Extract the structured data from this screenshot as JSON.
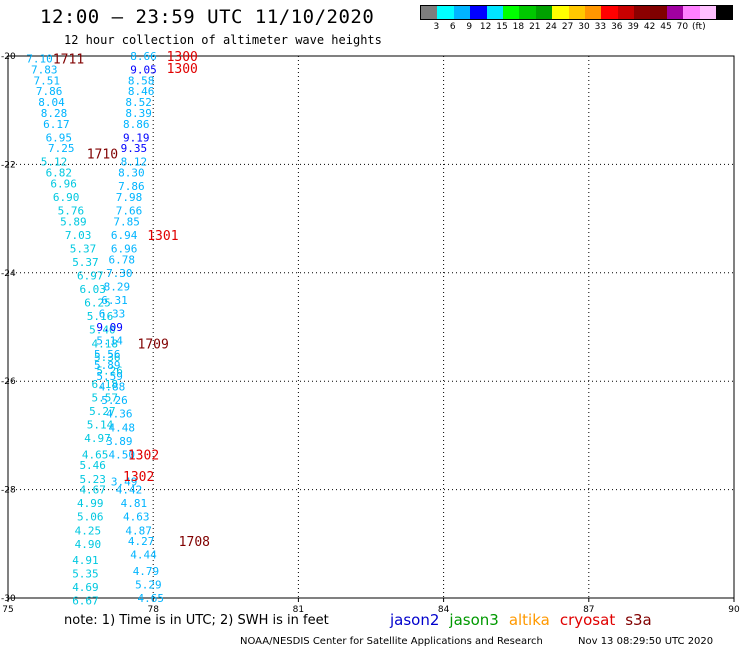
{
  "header": {
    "title": "12:00 – 23:59 UTC 11/10/2020",
    "subtitle": "12 hour collection of altimeter wave heights"
  },
  "legend": {
    "colors": [
      "#7d7d7d",
      "#00ffff",
      "#00b4ff",
      "#0000ff",
      "#00e4ff",
      "#00ff00",
      "#00c800",
      "#00a000",
      "#ffff00",
      "#ffc800",
      "#ff9600",
      "#ff0000",
      "#c80000",
      "#8c0000",
      "#800000",
      "#a000a0",
      "#ff80ff",
      "#ffc0ff",
      "#000000"
    ],
    "labels": [
      "3",
      "6",
      "9",
      "12",
      "15",
      "18",
      "21",
      "24",
      "27",
      "30",
      "33",
      "36",
      "39",
      "42",
      "45",
      "70",
      "(ft)"
    ]
  },
  "map": {
    "lon_ticks": [
      "75",
      "78",
      "81",
      "84",
      "87",
      "90"
    ],
    "lat_ticks": [
      "-20",
      "-22",
      "-24",
      "-26",
      "-28",
      "-30"
    ]
  },
  "chart_data": {
    "type": "scatter",
    "xlim": [
      75,
      90
    ],
    "ylim": [
      -30,
      -20
    ],
    "grid": true,
    "time_labels": [
      {
        "text": "1711",
        "lon": 76.25,
        "lat": -20.05,
        "color": "#800000"
      },
      {
        "text": "1300",
        "lon": 78.6,
        "lat": -20.0,
        "color": "#e00000"
      },
      {
        "text": "1300",
        "lon": 78.6,
        "lat": -20.22,
        "color": "#e00000"
      },
      {
        "text": "1710",
        "lon": 76.95,
        "lat": -21.8,
        "color": "#800000"
      },
      {
        "text": "1301",
        "lon": 78.2,
        "lat": -23.3,
        "color": "#e00000"
      },
      {
        "text": "1709",
        "lon": 78.0,
        "lat": -25.3,
        "color": "#800000"
      },
      {
        "text": "1302",
        "lon": 77.8,
        "lat": -27.35,
        "color": "#e00000"
      },
      {
        "text": "1302",
        "lon": 77.7,
        "lat": -27.75,
        "color": "#e00000"
      },
      {
        "text": "1708",
        "lon": 78.85,
        "lat": -28.95,
        "color": "#800000"
      }
    ],
    "points": [
      {
        "v": "7.10",
        "lon": 75.65,
        "lat": -20.05,
        "c": "#00b4ff"
      },
      {
        "v": "7.83",
        "lon": 75.75,
        "lat": -20.25,
        "c": "#00b4ff"
      },
      {
        "v": "7.51",
        "lon": 75.8,
        "lat": -20.45,
        "c": "#00b4ff"
      },
      {
        "v": "7.86",
        "lon": 75.85,
        "lat": -20.65,
        "c": "#00b4ff"
      },
      {
        "v": "8.04",
        "lon": 75.9,
        "lat": -20.85,
        "c": "#00b4ff"
      },
      {
        "v": "8.28",
        "lon": 75.95,
        "lat": -21.05,
        "c": "#00b4ff"
      },
      {
        "v": "6.17",
        "lon": 76.0,
        "lat": -21.25,
        "c": "#00b4ff"
      },
      {
        "v": "6.95",
        "lon": 76.05,
        "lat": -21.5,
        "c": "#00b4ff"
      },
      {
        "v": "7.25",
        "lon": 76.1,
        "lat": -21.7,
        "c": "#00b4ff"
      },
      {
        "v": "5.12",
        "lon": 75.95,
        "lat": -21.95,
        "c": "#00c8e0"
      },
      {
        "v": "6.82",
        "lon": 76.05,
        "lat": -22.15,
        "c": "#00c8e0"
      },
      {
        "v": "6.96",
        "lon": 76.15,
        "lat": -22.35,
        "c": "#00c8e0"
      },
      {
        "v": "6.90",
        "lon": 76.2,
        "lat": -22.6,
        "c": "#00c8e0"
      },
      {
        "v": "5.76",
        "lon": 76.3,
        "lat": -22.85,
        "c": "#00c8e0"
      },
      {
        "v": "5.89",
        "lon": 76.35,
        "lat": -23.05,
        "c": "#00c8e0"
      },
      {
        "v": "7.03",
        "lon": 76.45,
        "lat": -23.3,
        "c": "#00c8e0"
      },
      {
        "v": "5.37",
        "lon": 76.55,
        "lat": -23.55,
        "c": "#00c8e0"
      },
      {
        "v": "5.37",
        "lon": 76.6,
        "lat": -23.8,
        "c": "#00c8e0"
      },
      {
        "v": "6.97",
        "lon": 76.7,
        "lat": -24.05,
        "c": "#00c8e0"
      },
      {
        "v": "6.03",
        "lon": 76.75,
        "lat": -24.3,
        "c": "#00c8e0"
      },
      {
        "v": "6.25",
        "lon": 76.85,
        "lat": -24.55,
        "c": "#00c8e0"
      },
      {
        "v": "5.16",
        "lon": 76.9,
        "lat": -24.8,
        "c": "#00c8e0"
      },
      {
        "v": "5.40",
        "lon": 76.95,
        "lat": -25.05,
        "c": "#00c8e0"
      },
      {
        "v": "4.18",
        "lon": 77.0,
        "lat": -25.3,
        "c": "#00c8e0"
      },
      {
        "v": "5.36",
        "lon": 77.05,
        "lat": -25.55,
        "c": "#00c8e0"
      },
      {
        "v": "5.26",
        "lon": 77.1,
        "lat": -25.8,
        "c": "#00c8e0"
      },
      {
        "v": "6.18",
        "lon": 77.0,
        "lat": -26.05,
        "c": "#00c8e0"
      },
      {
        "v": "5.57",
        "lon": 77.0,
        "lat": -26.3,
        "c": "#00c8e0"
      },
      {
        "v": "5.27",
        "lon": 76.95,
        "lat": -26.55,
        "c": "#00c8e0"
      },
      {
        "v": "5.14",
        "lon": 76.9,
        "lat": -26.8,
        "c": "#00c8e0"
      },
      {
        "v": "4.97",
        "lon": 76.85,
        "lat": -27.05,
        "c": "#00c8e0"
      },
      {
        "v": "4.65",
        "lon": 76.8,
        "lat": -27.35,
        "c": "#00c8e0"
      },
      {
        "v": "5.46",
        "lon": 76.75,
        "lat": -27.55,
        "c": "#00c8e0"
      },
      {
        "v": "5.23",
        "lon": 76.75,
        "lat": -27.8,
        "c": "#00c8e0"
      },
      {
        "v": "4.67",
        "lon": 76.75,
        "lat": -28.0,
        "c": "#00c8e0"
      },
      {
        "v": "4.99",
        "lon": 76.7,
        "lat": -28.25,
        "c": "#00c8e0"
      },
      {
        "v": "5.06",
        "lon": 76.7,
        "lat": -28.5,
        "c": "#00c8e0"
      },
      {
        "v": "4.25",
        "lon": 76.65,
        "lat": -28.75,
        "c": "#00c8e0"
      },
      {
        "v": "4.90",
        "lon": 76.65,
        "lat": -29.0,
        "c": "#00c8e0"
      },
      {
        "v": "4.91",
        "lon": 76.6,
        "lat": -29.3,
        "c": "#00c8e0"
      },
      {
        "v": "5.35",
        "lon": 76.6,
        "lat": -29.55,
        "c": "#00c8e0"
      },
      {
        "v": "4.69",
        "lon": 76.6,
        "lat": -29.8,
        "c": "#00c8e0"
      },
      {
        "v": "6.67",
        "lon": 76.6,
        "lat": -30.05,
        "c": "#00c8e0"
      },
      {
        "v": "8.66",
        "lon": 77.8,
        "lat": -20.0,
        "c": "#00b4ff"
      },
      {
        "v": "9.05",
        "lon": 77.8,
        "lat": -20.25,
        "c": "#0000ff"
      },
      {
        "v": "8.58",
        "lon": 77.75,
        "lat": -20.45,
        "c": "#00b4ff"
      },
      {
        "v": "8.46",
        "lon": 77.75,
        "lat": -20.65,
        "c": "#00b4ff"
      },
      {
        "v": "8.52",
        "lon": 77.7,
        "lat": -20.85,
        "c": "#00b4ff"
      },
      {
        "v": "8.39",
        "lon": 77.7,
        "lat": -21.05,
        "c": "#00b4ff"
      },
      {
        "v": "8.86",
        "lon": 77.65,
        "lat": -21.25,
        "c": "#00b4ff"
      },
      {
        "v": "9.19",
        "lon": 77.65,
        "lat": -21.5,
        "c": "#0000ff"
      },
      {
        "v": "9.35",
        "lon": 77.6,
        "lat": -21.7,
        "c": "#0000ff"
      },
      {
        "v": "8.12",
        "lon": 77.6,
        "lat": -21.95,
        "c": "#00b4ff"
      },
      {
        "v": "8.30",
        "lon": 77.55,
        "lat": -22.15,
        "c": "#00b4ff"
      },
      {
        "v": "7.86",
        "lon": 77.55,
        "lat": -22.4,
        "c": "#00b4ff"
      },
      {
        "v": "7.98",
        "lon": 77.5,
        "lat": -22.6,
        "c": "#00b4ff"
      },
      {
        "v": "7.66",
        "lon": 77.5,
        "lat": -22.85,
        "c": "#00b4ff"
      },
      {
        "v": "7.85",
        "lon": 77.45,
        "lat": -23.05,
        "c": "#00b4ff"
      },
      {
        "v": "6.94",
        "lon": 77.4,
        "lat": -23.3,
        "c": "#00b4ff"
      },
      {
        "v": "6.96",
        "lon": 77.4,
        "lat": -23.55,
        "c": "#00b4ff"
      },
      {
        "v": "6.78",
        "lon": 77.35,
        "lat": -23.75,
        "c": "#00b4ff"
      },
      {
        "v": "7.30",
        "lon": 77.3,
        "lat": -24.0,
        "c": "#00b4ff"
      },
      {
        "v": "8.29",
        "lon": 77.25,
        "lat": -24.25,
        "c": "#00b4ff"
      },
      {
        "v": "6.31",
        "lon": 77.2,
        "lat": -24.5,
        "c": "#00b4ff"
      },
      {
        "v": "6.33",
        "lon": 77.15,
        "lat": -24.75,
        "c": "#00b4ff"
      },
      {
        "v": "9.09",
        "lon": 77.1,
        "lat": -25.0,
        "c": "#0000ff"
      },
      {
        "v": "5.14",
        "lon": 77.1,
        "lat": -25.25,
        "c": "#00b4ff"
      },
      {
        "v": "5.56",
        "lon": 77.05,
        "lat": -25.5,
        "c": "#00b4ff"
      },
      {
        "v": "5.89",
        "lon": 77.05,
        "lat": -25.7,
        "c": "#00b4ff"
      },
      {
        "v": "5.59",
        "lon": 77.1,
        "lat": -25.9,
        "c": "#00b4ff"
      },
      {
        "v": "4.88",
        "lon": 77.15,
        "lat": -26.1,
        "c": "#00b4ff"
      },
      {
        "v": "5.26",
        "lon": 77.2,
        "lat": -26.35,
        "c": "#00b4ff"
      },
      {
        "v": "4.36",
        "lon": 77.3,
        "lat": -26.6,
        "c": "#00b4ff"
      },
      {
        "v": "4.48",
        "lon": 77.35,
        "lat": -26.85,
        "c": "#00b4ff"
      },
      {
        "v": "3.89",
        "lon": 77.3,
        "lat": -27.1,
        "c": "#00b4ff"
      },
      {
        "v": "4.50",
        "lon": 77.35,
        "lat": -27.35,
        "c": "#00b4ff"
      },
      {
        "v": "3.49",
        "lon": 77.4,
        "lat": -27.85,
        "c": "#00b4ff"
      },
      {
        "v": "4.42",
        "lon": 77.5,
        "lat": -28.0,
        "c": "#00b4ff"
      },
      {
        "v": "4.81",
        "lon": 77.6,
        "lat": -28.25,
        "c": "#00b4ff"
      },
      {
        "v": "4.63",
        "lon": 77.65,
        "lat": -28.5,
        "c": "#00b4ff"
      },
      {
        "v": "4.87",
        "lon": 77.7,
        "lat": -28.75,
        "c": "#00b4ff"
      },
      {
        "v": "4.27",
        "lon": 77.75,
        "lat": -28.95,
        "c": "#00b4ff"
      },
      {
        "v": "4.44",
        "lon": 77.8,
        "lat": -29.2,
        "c": "#00b4ff"
      },
      {
        "v": "4.79",
        "lon": 77.85,
        "lat": -29.5,
        "c": "#00b4ff"
      },
      {
        "v": "5.29",
        "lon": 77.9,
        "lat": -29.75,
        "c": "#00b4ff"
      },
      {
        "v": "4.65",
        "lon": 77.95,
        "lat": -30.0,
        "c": "#00b4ff"
      }
    ]
  },
  "footer": {
    "note": "note:  1) Time is in UTC; 2) SWH is in feet",
    "satellites": [
      {
        "name": "jason2",
        "color": "#0000cc"
      },
      {
        "name": "jason3",
        "color": "#009900"
      },
      {
        "name": "altika",
        "color": "#ff9900"
      },
      {
        "name": "cryosat",
        "color": "#e00000"
      },
      {
        "name": "s3a",
        "color": "#800000"
      }
    ],
    "center": "NOAA/NESDIS Center for Satellite Applications and Research",
    "timestamp": "Nov 13 08:29:50 UTC 2020"
  }
}
